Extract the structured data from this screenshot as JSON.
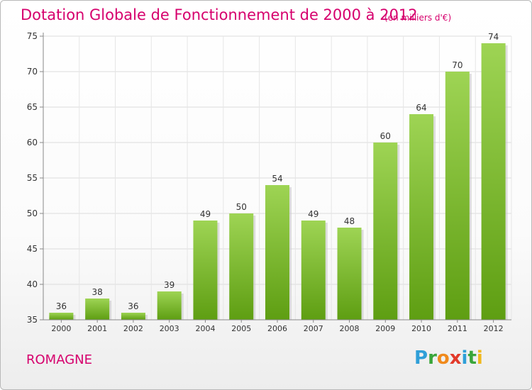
{
  "title": "Dotation Globale de Fonctionnement de 2000 à 2012",
  "subtitle": "(en milliers d'€)",
  "commune": "ROMAGNE",
  "logo": {
    "letters": [
      "P",
      "r",
      "o",
      "x",
      "i",
      "t",
      "i"
    ],
    "colors": [
      "#2f9fd8",
      "#3aa63a",
      "#f08a1c",
      "#e23a2a",
      "#2f9fd8",
      "#3aa63a",
      "#f0b81c"
    ]
  },
  "colors": {
    "bar_top": "#9ed454",
    "bar_bottom": "#5e9e12",
    "accent": "#d6006d"
  },
  "chart_data": {
    "type": "bar",
    "title": "Dotation Globale de Fonctionnement de 2000 à 2012",
    "subtitle": "(en milliers d'€)",
    "categories": [
      "2000",
      "2001",
      "2002",
      "2003",
      "2004",
      "2005",
      "2006",
      "2007",
      "2008",
      "2009",
      "2010",
      "2011",
      "2012"
    ],
    "values": [
      36,
      38,
      36,
      39,
      49,
      50,
      54,
      49,
      48,
      60,
      64,
      70,
      74
    ],
    "ylim": [
      35,
      75
    ],
    "yticks": [
      35,
      40,
      45,
      50,
      55,
      60,
      65,
      70,
      75
    ],
    "grid": true,
    "legend": "none"
  }
}
